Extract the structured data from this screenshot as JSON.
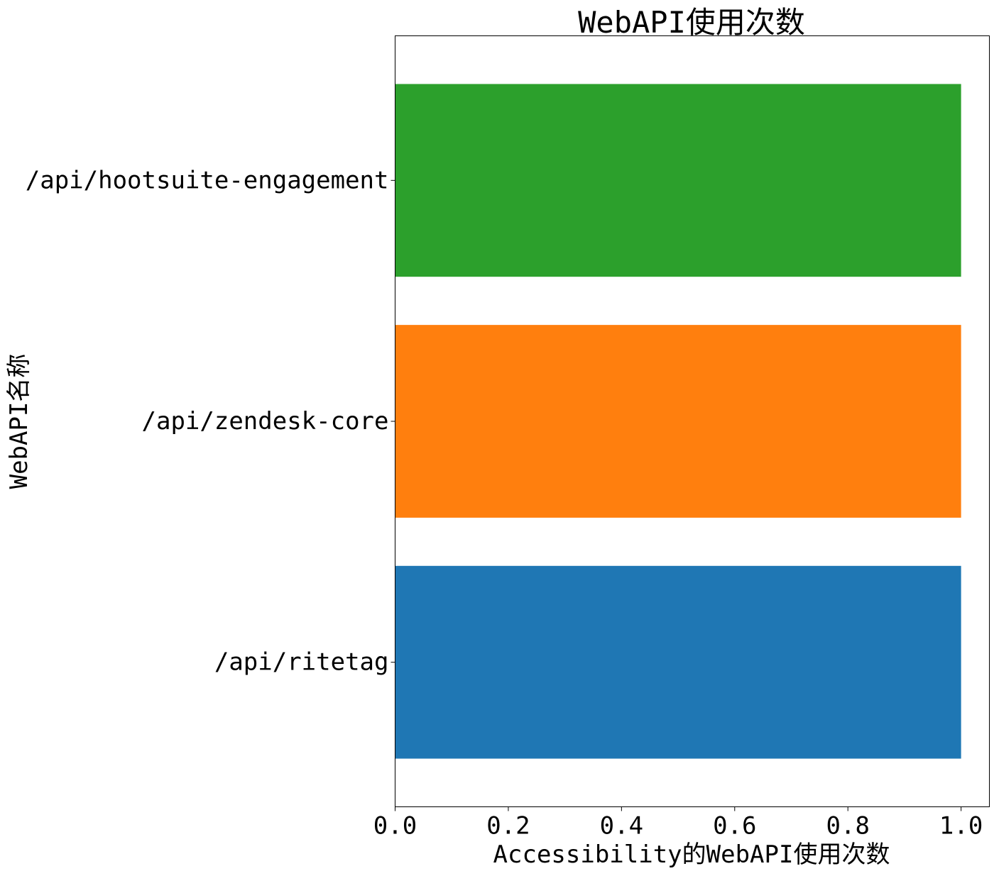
{
  "chart_data": {
    "type": "bar",
    "orientation": "horizontal",
    "title": "WebAPI使用次数",
    "xlabel": "Accessibility的WebAPI使用次数",
    "ylabel": "WebAPI名称",
    "categories": [
      "/api/ritetag",
      "/api/zendesk-core",
      "/api/hootsuite-engagement"
    ],
    "values": [
      1,
      1,
      1
    ],
    "colors": [
      "#1f77b4",
      "#ff7f0e",
      "#2ca02c"
    ],
    "xlim": [
      0,
      1.05
    ],
    "xticks": [
      0.0,
      0.2,
      0.4,
      0.6,
      0.8,
      1.0
    ],
    "xtick_labels": [
      "0.0",
      "0.2",
      "0.4",
      "0.6",
      "0.8",
      "1.0"
    ],
    "grid": false,
    "legend": "none"
  }
}
